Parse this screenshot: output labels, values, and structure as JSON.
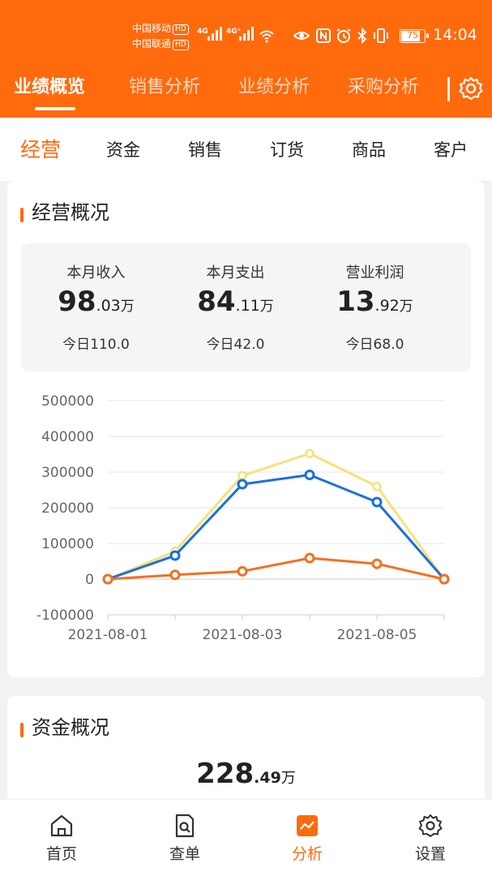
{
  "status_bar": {
    "carrier1": "中国移动",
    "carrier2": "中国联通",
    "hd": "HD",
    "net1": "4G",
    "net2": "4G⁺",
    "battery": "75",
    "time": "14:04"
  },
  "top_tabs": [
    "业绩概览",
    "销售分析",
    "业绩分析",
    "采购分析"
  ],
  "sub_tabs": [
    "经营",
    "资金",
    "销售",
    "订货",
    "商品",
    "客户"
  ],
  "operation_overview": {
    "title": "经营概况",
    "stats": [
      {
        "label": "本月收入",
        "int": "98",
        "dec": ".03",
        "unit": "万",
        "today": "今日110.0"
      },
      {
        "label": "本月支出",
        "int": "84",
        "dec": ".11",
        "unit": "万",
        "today": "今日42.0"
      },
      {
        "label": "营业利润",
        "int": "13",
        "dec": ".92",
        "unit": "万",
        "today": "今日68.0"
      }
    ]
  },
  "chart_data": {
    "type": "line",
    "x": [
      "2021-08-01",
      "2021-08-02",
      "2021-08-03",
      "2021-08-04",
      "2021-08-05",
      "2021-08-06"
    ],
    "x_tick_labels": [
      "2021-08-01",
      "2021-08-03",
      "2021-08-05"
    ],
    "y_ticks": [
      "500000",
      "400000",
      "300000",
      "200000",
      "100000",
      "0",
      "-100000"
    ],
    "ylim": [
      -100000,
      500000
    ],
    "series": [
      {
        "color": "#f7e17a",
        "values": [
          0,
          78000,
          290000,
          352000,
          260000,
          0
        ],
        "markers": false
      },
      {
        "color": "#1a6fe0",
        "values": [
          0,
          66000,
          266000,
          292000,
          216000,
          0
        ],
        "markers": true
      },
      {
        "color": "#f07122",
        "values": [
          0,
          12000,
          22000,
          59000,
          43000,
          0
        ],
        "markers": true
      }
    ]
  },
  "funds_overview": {
    "title": "资金概况",
    "int": "228",
    "dec": ".49",
    "unit": "万"
  },
  "bottom_nav": [
    {
      "label": "首页",
      "icon": "home-icon"
    },
    {
      "label": "查单",
      "icon": "search-document-icon"
    },
    {
      "label": "分析",
      "icon": "analysis-chart-icon"
    },
    {
      "label": "设置",
      "icon": "gear-icon"
    }
  ],
  "colors": {
    "brand": "#ff6a0c"
  }
}
